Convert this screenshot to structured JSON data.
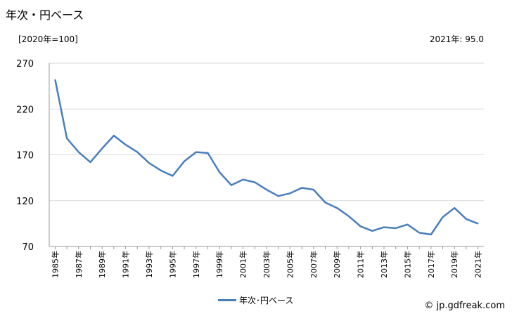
{
  "header": {
    "title": "年次・円ベース",
    "unit_label": "[2020年=100]",
    "latest_value_label": "2021年: 95.0"
  },
  "legend": {
    "label": "年次･円ベース"
  },
  "credit": "© jp.gdfreak.com",
  "colors": {
    "line": "#4a7ebb",
    "grid": "#d9d9d9",
    "axis": "#999999"
  },
  "chart_data": {
    "type": "line",
    "x": [
      1985,
      1986,
      1987,
      1988,
      1989,
      1990,
      1991,
      1992,
      1993,
      1994,
      1995,
      1996,
      1997,
      1998,
      1999,
      2000,
      2001,
      2002,
      2003,
      2004,
      2005,
      2006,
      2007,
      2008,
      2009,
      2010,
      2011,
      2012,
      2013,
      2014,
      2015,
      2016,
      2017,
      2018,
      2019,
      2020,
      2021
    ],
    "series": [
      {
        "name": "年次･円ベース",
        "values": [
          252,
          188,
          173,
          162,
          177,
          191,
          181,
          173,
          161,
          153,
          147,
          163,
          173,
          172,
          151,
          137,
          143,
          140,
          132,
          125,
          128,
          134,
          132,
          118,
          112,
          103,
          92,
          87,
          91,
          90,
          94,
          85,
          83,
          102,
          112,
          100,
          95.0
        ]
      }
    ],
    "xtick_labels": [
      "1985年",
      "1987年",
      "1989年",
      "1991年",
      "1993年",
      "1995年",
      "1997年",
      "1999年",
      "2001年",
      "2003年",
      "2005年",
      "2007年",
      "2009年",
      "2011年",
      "2013年",
      "2015年",
      "2017年",
      "2019年",
      "2021年"
    ],
    "ytick_labels": [
      "270",
      "220",
      "170",
      "120",
      "70"
    ],
    "yticks": [
      270,
      220,
      170,
      120,
      70
    ],
    "ylim": [
      70,
      270
    ],
    "grid": "horizontal",
    "legend_position": "bottom"
  }
}
